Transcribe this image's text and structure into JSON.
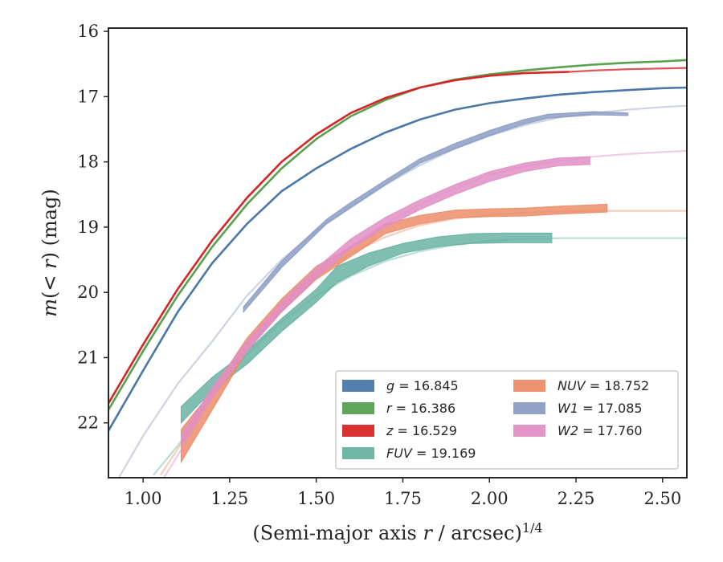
{
  "chart_data": {
    "type": "line",
    "title": "",
    "xlabel": "(Semi-major axis r / arcsec)^{1/4}",
    "ylabel": "m(<r) (mag)",
    "xlim": [
      0.9,
      2.57
    ],
    "ylim": [
      22.84,
      15.95
    ],
    "y_inverted": true,
    "xticks": [
      "1.00",
      "1.25",
      "1.50",
      "1.75",
      "2.00",
      "2.25",
      "2.50"
    ],
    "yticks": [
      "16",
      "17",
      "18",
      "19",
      "20",
      "21",
      "22"
    ],
    "xtick_values": [
      1.0,
      1.25,
      1.5,
      1.75,
      2.0,
      2.25,
      2.5
    ],
    "ytick_values": [
      16,
      17,
      18,
      19,
      20,
      21,
      22
    ],
    "grid": false,
    "legend_position": "lower-right",
    "series": [
      {
        "name": "g = 16.845",
        "label_var": "g",
        "label_val": "16.845",
        "color": "#4c78a8",
        "model": [
          [
            0.9,
            22.12
          ],
          [
            1.0,
            21.2
          ],
          [
            1.1,
            20.3
          ],
          [
            1.2,
            19.55
          ],
          [
            1.3,
            18.95
          ],
          [
            1.4,
            18.45
          ],
          [
            1.5,
            18.1
          ],
          [
            1.6,
            17.8
          ],
          [
            1.7,
            17.55
          ],
          [
            1.8,
            17.35
          ],
          [
            1.9,
            17.2
          ],
          [
            2.0,
            17.1
          ],
          [
            2.1,
            17.03
          ],
          [
            2.2,
            16.97
          ],
          [
            2.3,
            16.93
          ],
          [
            2.4,
            16.9
          ],
          [
            2.5,
            16.87
          ],
          [
            2.57,
            16.86
          ]
        ],
        "model_end": 2.57,
        "data_band": [],
        "band_width": 0.05
      },
      {
        "name": "r = 16.386",
        "label_var": "r",
        "label_val": "16.386",
        "color": "#59a14f",
        "model": [
          [
            0.9,
            21.8
          ],
          [
            1.0,
            20.9
          ],
          [
            1.1,
            20.05
          ],
          [
            1.2,
            19.3
          ],
          [
            1.3,
            18.65
          ],
          [
            1.4,
            18.1
          ],
          [
            1.5,
            17.65
          ],
          [
            1.6,
            17.3
          ],
          [
            1.7,
            17.05
          ],
          [
            1.8,
            16.86
          ],
          [
            1.9,
            16.74
          ],
          [
            2.0,
            16.66
          ],
          [
            2.1,
            16.6
          ],
          [
            2.2,
            16.55
          ],
          [
            2.3,
            16.51
          ],
          [
            2.4,
            16.48
          ],
          [
            2.5,
            16.46
          ],
          [
            2.57,
            16.44
          ]
        ],
        "model_end": 2.57,
        "data_band": [],
        "band_width": 0.05
      },
      {
        "name": "z = 16.529",
        "label_var": "z",
        "label_val": "16.529",
        "color": "#d62728",
        "model": [
          [
            0.9,
            21.7
          ],
          [
            1.0,
            20.8
          ],
          [
            1.1,
            19.95
          ],
          [
            1.2,
            19.2
          ],
          [
            1.3,
            18.55
          ],
          [
            1.4,
            18.0
          ],
          [
            1.5,
            17.58
          ],
          [
            1.6,
            17.25
          ],
          [
            1.7,
            17.02
          ],
          [
            1.8,
            16.86
          ],
          [
            1.9,
            16.75
          ],
          [
            2.0,
            16.68
          ],
          [
            2.1,
            16.64
          ],
          [
            2.23,
            16.62
          ],
          [
            2.3,
            16.6
          ],
          [
            2.4,
            16.58
          ],
          [
            2.57,
            16.56
          ]
        ],
        "model_end": 2.23,
        "data_band": [],
        "band_width": 0.05
      },
      {
        "name": "FUV = 19.169",
        "label_var": "FUV",
        "label_val": "19.169",
        "color": "#69b3a2",
        "model": [
          [
            1.03,
            22.8
          ],
          [
            1.1,
            22.35
          ],
          [
            1.2,
            21.6
          ],
          [
            1.3,
            20.95
          ],
          [
            1.4,
            20.45
          ],
          [
            1.5,
            20.05
          ],
          [
            1.6,
            19.75
          ],
          [
            1.7,
            19.52
          ],
          [
            1.8,
            19.37
          ],
          [
            1.9,
            19.27
          ],
          [
            2.0,
            19.21
          ],
          [
            2.1,
            19.18
          ],
          [
            2.2,
            19.17
          ],
          [
            2.3,
            19.17
          ],
          [
            2.57,
            19.17
          ]
        ],
        "model_end": 2.57,
        "data_band": [
          [
            1.11,
            22.0,
            21.75
          ],
          [
            1.2,
            21.5,
            21.3
          ],
          [
            1.3,
            21.1,
            20.9
          ],
          [
            1.4,
            20.6,
            20.4
          ],
          [
            1.5,
            20.15,
            19.95
          ],
          [
            1.56,
            19.85,
            19.6
          ],
          [
            1.65,
            19.6,
            19.4
          ],
          [
            1.75,
            19.4,
            19.25
          ],
          [
            1.85,
            19.3,
            19.15
          ],
          [
            1.95,
            19.25,
            19.1
          ],
          [
            2.05,
            19.24,
            19.09
          ],
          [
            2.18,
            19.24,
            19.09
          ]
        ],
        "band_width": 0.18
      },
      {
        "name": "NUV = 18.752",
        "label_var": "NUV",
        "label_val": "18.752",
        "color": "#ec8d6a",
        "model": [
          [
            1.05,
            22.8
          ],
          [
            1.1,
            22.4
          ],
          [
            1.2,
            21.55
          ],
          [
            1.3,
            20.8
          ],
          [
            1.4,
            20.15
          ],
          [
            1.5,
            19.72
          ],
          [
            1.6,
            19.4
          ],
          [
            1.7,
            19.15
          ],
          [
            1.8,
            18.97
          ],
          [
            1.9,
            18.87
          ],
          [
            2.0,
            18.81
          ],
          [
            2.1,
            18.78
          ],
          [
            2.2,
            18.76
          ],
          [
            2.3,
            18.75
          ],
          [
            2.57,
            18.75
          ]
        ],
        "model_end": 2.57,
        "data_band": [
          [
            1.11,
            22.6,
            22.1
          ],
          [
            1.2,
            21.8,
            21.5
          ],
          [
            1.3,
            20.9,
            20.7
          ],
          [
            1.4,
            20.3,
            20.1
          ],
          [
            1.5,
            19.8,
            19.6
          ],
          [
            1.6,
            19.45,
            19.3
          ],
          [
            1.7,
            19.1,
            18.95
          ],
          [
            1.8,
            18.95,
            18.82
          ],
          [
            1.9,
            18.86,
            18.74
          ],
          [
            2.0,
            18.84,
            18.72
          ],
          [
            2.1,
            18.83,
            18.71
          ],
          [
            2.2,
            18.8,
            18.68
          ],
          [
            2.34,
            18.77,
            18.65
          ]
        ],
        "band_width": 0.15
      },
      {
        "name": "W1 = 17.085",
        "label_var": "W1",
        "label_val": "17.085",
        "color": "#8c9dc4",
        "model": [
          [
            0.93,
            22.84
          ],
          [
            1.0,
            22.2
          ],
          [
            1.1,
            21.4
          ],
          [
            1.2,
            20.75
          ],
          [
            1.3,
            20.05
          ],
          [
            1.4,
            19.5
          ],
          [
            1.5,
            19.05
          ],
          [
            1.6,
            18.7
          ],
          [
            1.7,
            18.35
          ],
          [
            1.8,
            18.05
          ],
          [
            1.9,
            17.8
          ],
          [
            2.0,
            17.6
          ],
          [
            2.1,
            17.44
          ],
          [
            2.2,
            17.32
          ],
          [
            2.3,
            17.25
          ],
          [
            2.4,
            17.2
          ],
          [
            2.5,
            17.16
          ],
          [
            2.57,
            17.14
          ]
        ],
        "model_end": 2.57,
        "data_band": [
          [
            1.29,
            20.3,
            20.22
          ],
          [
            1.4,
            19.62,
            19.52
          ],
          [
            1.53,
            18.95,
            18.88
          ],
          [
            1.6,
            18.7,
            18.62
          ],
          [
            1.7,
            18.35,
            18.28
          ],
          [
            1.8,
            18.02,
            17.95
          ],
          [
            1.9,
            17.8,
            17.72
          ],
          [
            2.0,
            17.6,
            17.52
          ],
          [
            2.1,
            17.42,
            17.35
          ],
          [
            2.17,
            17.33,
            17.27
          ],
          [
            2.3,
            17.28,
            17.23
          ],
          [
            2.4,
            17.29,
            17.25
          ]
        ],
        "band_width": 0.07
      },
      {
        "name": "W2 = 17.760",
        "label_var": "W2",
        "label_val": "17.760",
        "color": "#e18fc6",
        "model": [
          [
            1.06,
            22.84
          ],
          [
            1.1,
            22.5
          ],
          [
            1.2,
            21.6
          ],
          [
            1.3,
            20.85
          ],
          [
            1.4,
            20.25
          ],
          [
            1.5,
            19.72
          ],
          [
            1.6,
            19.3
          ],
          [
            1.7,
            18.95
          ],
          [
            1.8,
            18.65
          ],
          [
            1.9,
            18.4
          ],
          [
            2.0,
            18.2
          ],
          [
            2.1,
            18.07
          ],
          [
            2.2,
            17.98
          ],
          [
            2.3,
            17.92
          ],
          [
            2.4,
            17.88
          ],
          [
            2.5,
            17.85
          ],
          [
            2.57,
            17.83
          ]
        ],
        "model_end": 2.57,
        "data_band": [
          [
            1.11,
            22.35,
            22.2
          ],
          [
            1.2,
            21.6,
            21.45
          ],
          [
            1.3,
            20.9,
            20.75
          ],
          [
            1.4,
            20.3,
            20.15
          ],
          [
            1.5,
            19.78,
            19.63
          ],
          [
            1.6,
            19.33,
            19.18
          ],
          [
            1.7,
            19.0,
            18.85
          ],
          [
            1.8,
            18.73,
            18.58
          ],
          [
            1.9,
            18.5,
            18.35
          ],
          [
            2.0,
            18.3,
            18.15
          ],
          [
            2.1,
            18.15,
            18.02
          ],
          [
            2.2,
            18.06,
            17.94
          ],
          [
            2.29,
            18.04,
            17.92
          ]
        ],
        "band_width": 0.12
      }
    ]
  }
}
